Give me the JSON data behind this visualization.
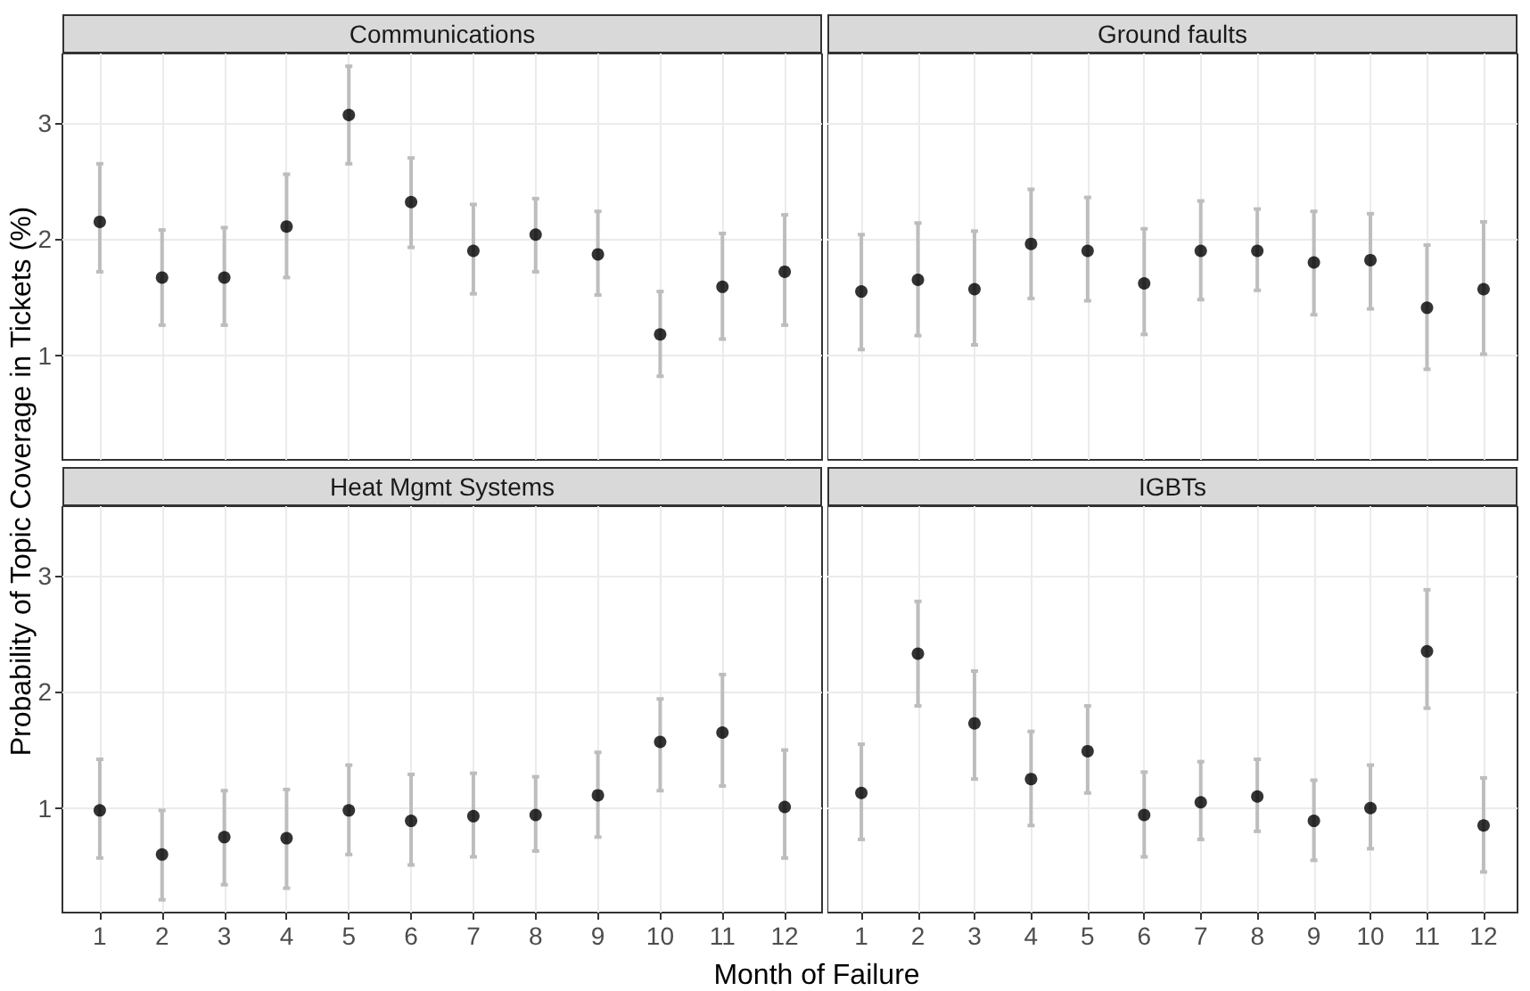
{
  "chart_data": [
    {
      "type": "scatter",
      "title": "Communications",
      "ylabel": "Probability of Topic Coverage in Tickets (%)",
      "x": [
        1,
        2,
        3,
        4,
        5,
        6,
        7,
        8,
        9,
        10,
        11,
        12
      ],
      "xlim": [
        0.4,
        12.6
      ],
      "xticks": [
        1,
        2,
        3,
        4,
        5,
        6,
        7,
        8,
        9,
        10,
        11,
        12
      ],
      "ylim": [
        0.1,
        3.6
      ],
      "yticks": [
        1,
        2,
        3
      ],
      "grid": true,
      "marker": "circle",
      "tick_labels": "y",
      "color": "#000000",
      "values": [
        2.15,
        1.67,
        1.67,
        2.11,
        3.07,
        2.32,
        1.9,
        2.04,
        1.87,
        1.18,
        1.59,
        1.72
      ],
      "errors": [
        [
          1.72,
          2.65
        ],
        [
          1.26,
          2.08
        ],
        [
          1.26,
          2.1
        ],
        [
          1.67,
          2.56
        ],
        [
          2.65,
          3.49
        ],
        [
          1.93,
          2.7
        ],
        [
          1.53,
          2.3
        ],
        [
          1.72,
          2.35
        ],
        [
          1.52,
          2.24
        ],
        [
          0.82,
          1.55
        ],
        [
          1.14,
          2.05
        ],
        [
          1.26,
          2.21
        ]
      ]
    },
    {
      "type": "scatter",
      "title": "Ground faults",
      "x": [
        1,
        2,
        3,
        4,
        5,
        6,
        7,
        8,
        9,
        10,
        11,
        12
      ],
      "xlim": [
        0.4,
        12.6
      ],
      "xticks": [
        1,
        2,
        3,
        4,
        5,
        6,
        7,
        8,
        9,
        10,
        11,
        12
      ],
      "ylim": [
        0.1,
        3.6
      ],
      "yticks": [
        1,
        2,
        3
      ],
      "grid": true,
      "marker": "circle",
      "tick_labels": false,
      "color": "#000000",
      "values": [
        1.55,
        1.65,
        1.57,
        1.96,
        1.9,
        1.62,
        1.9,
        1.9,
        1.8,
        1.82,
        1.41,
        1.57
      ],
      "errors": [
        [
          1.05,
          2.04
        ],
        [
          1.17,
          2.14
        ],
        [
          1.09,
          2.07
        ],
        [
          1.49,
          2.43
        ],
        [
          1.47,
          2.36
        ],
        [
          1.18,
          2.09
        ],
        [
          1.48,
          2.33
        ],
        [
          1.56,
          2.26
        ],
        [
          1.35,
          2.24
        ],
        [
          1.4,
          2.22
        ],
        [
          0.88,
          1.95
        ],
        [
          1.01,
          2.15
        ]
      ]
    },
    {
      "type": "scatter",
      "title": "Heat Mgmt Systems",
      "xlabel": "Month of Failure",
      "x": [
        1,
        2,
        3,
        4,
        5,
        6,
        7,
        8,
        9,
        10,
        11,
        12
      ],
      "xlim": [
        0.4,
        12.6
      ],
      "xticks": [
        1,
        2,
        3,
        4,
        5,
        6,
        7,
        8,
        9,
        10,
        11,
        12
      ],
      "ylim": [
        0.1,
        3.6
      ],
      "yticks": [
        1,
        2,
        3
      ],
      "grid": true,
      "marker": "circle",
      "color": "#000000",
      "values": [
        0.98,
        0.6,
        0.75,
        0.74,
        0.98,
        0.89,
        0.93,
        0.94,
        1.11,
        1.57,
        1.65,
        1.01
      ],
      "errors": [
        [
          0.57,
          1.42
        ],
        [
          0.21,
          0.98
        ],
        [
          0.34,
          1.15
        ],
        [
          0.31,
          1.16
        ],
        [
          0.6,
          1.37
        ],
        [
          0.51,
          1.29
        ],
        [
          0.58,
          1.3
        ],
        [
          0.63,
          1.27
        ],
        [
          0.75,
          1.48
        ],
        [
          1.15,
          1.94
        ],
        [
          1.19,
          2.15
        ],
        [
          0.57,
          1.5
        ]
      ]
    },
    {
      "type": "scatter",
      "title": "IGBTs",
      "x": [
        1,
        2,
        3,
        4,
        5,
        6,
        7,
        8,
        9,
        10,
        11,
        12
      ],
      "xlim": [
        0.4,
        12.6
      ],
      "xticks": [
        1,
        2,
        3,
        4,
        5,
        6,
        7,
        8,
        9,
        10,
        11,
        12
      ],
      "ylim": [
        0.1,
        3.6
      ],
      "yticks": [
        1,
        2,
        3
      ],
      "grid": true,
      "marker": "circle",
      "tick_labels": "x",
      "color": "#000000",
      "values": [
        1.13,
        2.33,
        1.73,
        1.25,
        1.49,
        0.94,
        1.05,
        1.1,
        0.89,
        1.0,
        2.35,
        0.85
      ],
      "errors": [
        [
          0.73,
          1.55
        ],
        [
          1.88,
          2.78
        ],
        [
          1.25,
          2.18
        ],
        [
          0.85,
          1.66
        ],
        [
          1.13,
          1.88
        ],
        [
          0.58,
          1.31
        ],
        [
          0.73,
          1.4
        ],
        [
          0.8,
          1.42
        ],
        [
          0.55,
          1.24
        ],
        [
          0.65,
          1.37
        ],
        [
          1.86,
          2.88
        ],
        [
          0.45,
          1.26
        ]
      ]
    }
  ]
}
